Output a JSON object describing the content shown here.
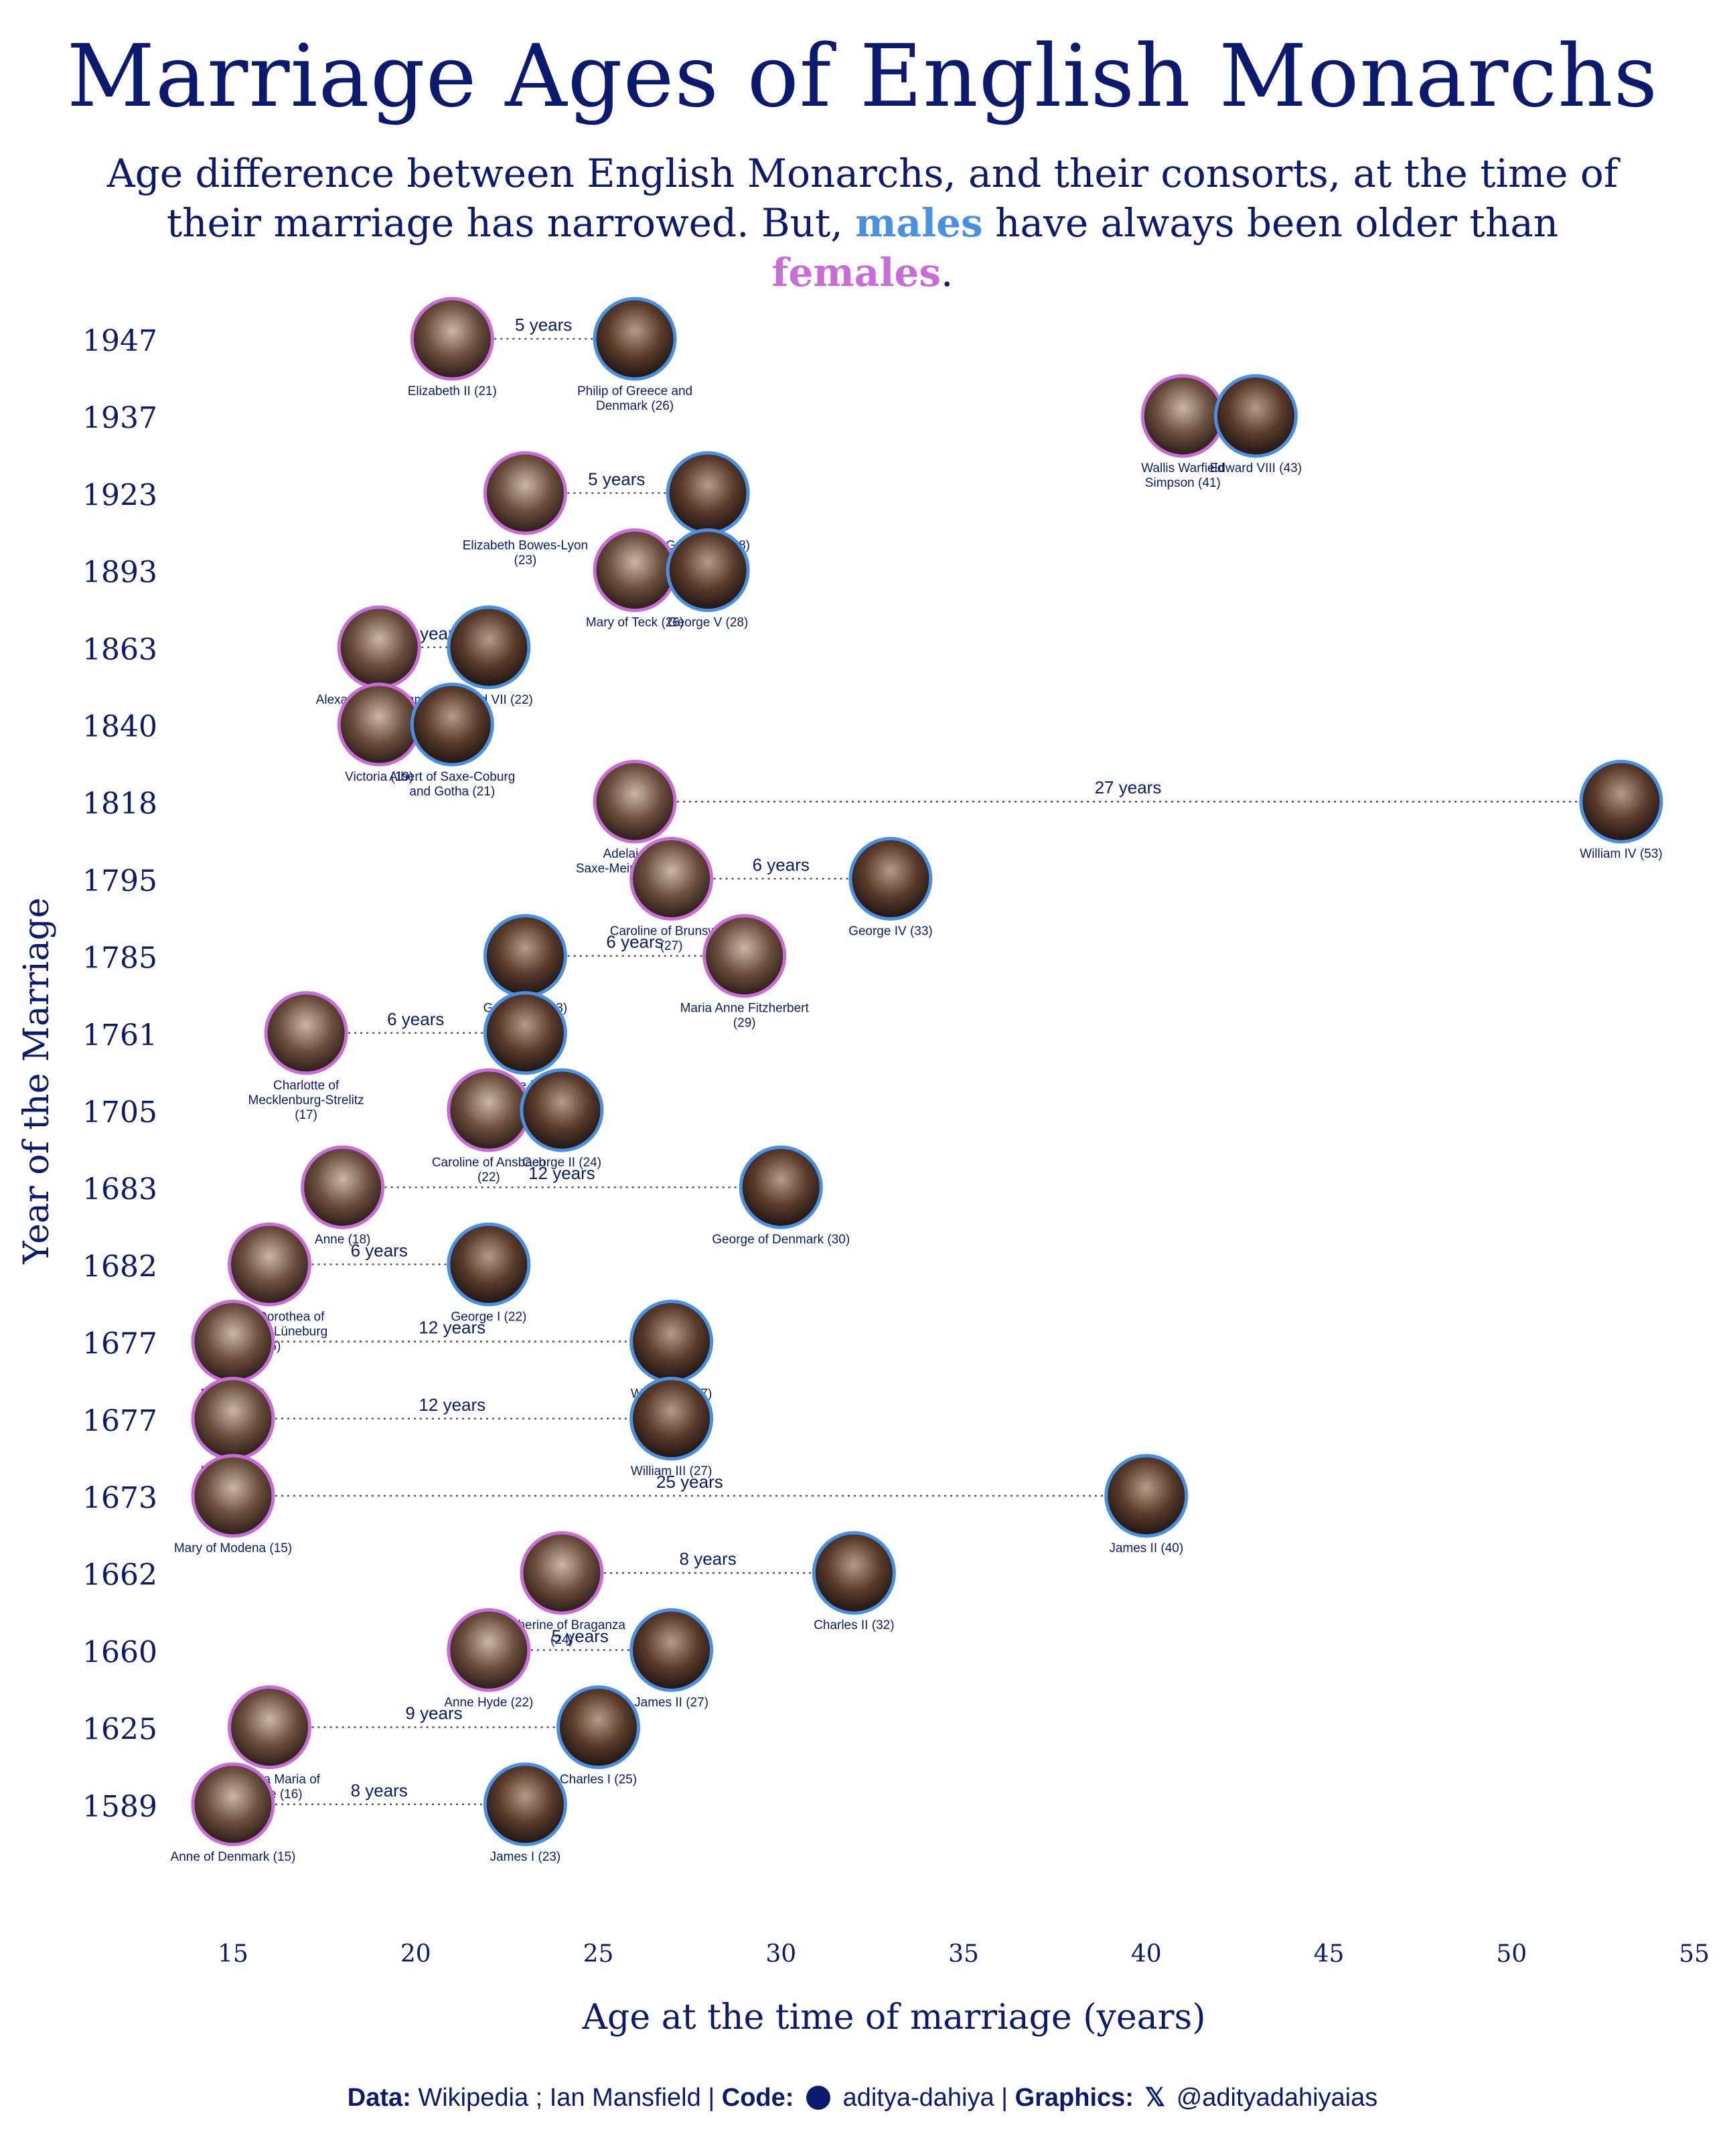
{
  "title": "Marriage Ages of English Monarchs",
  "subtitle": {
    "part1": "Age difference between English Monarchs, and their consorts, at the time of their marriage has narrowed. But,",
    "males": "males",
    "part2": "have always been older than",
    "females": "females",
    "end": "."
  },
  "colors": {
    "male": "#4a90e2",
    "female": "#c86dd7",
    "text": "#0b1a6e"
  },
  "caption": {
    "data_label": "Data:",
    "data_value": "Wikipedia ; Ian Mansfield |",
    "code_label": "Code:",
    "code_value": "aditya-dahiya |",
    "graphics_label": "Graphics:",
    "graphics_value": "@adityadahiyaias",
    "code_icon": "github-icon",
    "graphics_icon": "x-icon"
  },
  "chart_data": {
    "type": "dumbbell",
    "xlabel": "Age at the time of marriage (years)",
    "ylabel": "Year of the Marriage",
    "xlim": [
      15,
      55
    ],
    "xticks": [
      15,
      20,
      25,
      30,
      35,
      40,
      45,
      50,
      55
    ],
    "grid": false,
    "rows": [
      {
        "year": "1947",
        "female": "Elizabeth II (21)",
        "female_age": 21,
        "male": "Philip of Greece and Denmark (26)",
        "male_age": 26,
        "diff": "5 years"
      },
      {
        "year": "1937",
        "female": "Wallis Warfield Simpson (41)",
        "female_age": 41,
        "male": "Edward VIII (43)",
        "male_age": 43,
        "diff": ""
      },
      {
        "year": "1923",
        "female": "Elizabeth Bowes-Lyon (23)",
        "female_age": 23,
        "male": "George VI (28)",
        "male_age": 28,
        "diff": "5 years"
      },
      {
        "year": "1893",
        "female": "Mary of Teck (26)",
        "female_age": 26,
        "male": "George V (28)",
        "male_age": 28,
        "diff": ""
      },
      {
        "year": "1863",
        "female": "Alexandra of Denmark (19)",
        "female_age": 19,
        "male": "Edward VII (22)",
        "male_age": 22,
        "diff": "3 years"
      },
      {
        "year": "1840",
        "female": "Victoria (19)",
        "female_age": 19,
        "male": "Albert of Saxe-Coburg and Gotha (21)",
        "male_age": 21,
        "diff": ""
      },
      {
        "year": "1818",
        "female": "Adelaide of Saxe-Meiningen (26)",
        "female_age": 26,
        "male": "William IV (53)",
        "male_age": 53,
        "diff": "27 years"
      },
      {
        "year": "1795",
        "female": "Caroline of Brunswick (27)",
        "female_age": 27,
        "male": "George IV (33)",
        "male_age": 33,
        "diff": "6 years"
      },
      {
        "year": "1785",
        "female": "Maria Anne Fitzherbert (29)",
        "female_age": 29,
        "male": "George IV (23)",
        "male_age": 23,
        "diff": "6 years"
      },
      {
        "year": "1761",
        "female": "Charlotte of Mecklenburg-Strelitz (17)",
        "female_age": 17,
        "male": "George III (23)",
        "male_age": 23,
        "diff": "6 years"
      },
      {
        "year": "1705",
        "female": "Caroline of Ansbach (22)",
        "female_age": 22,
        "male": "George II (24)",
        "male_age": 24,
        "diff": ""
      },
      {
        "year": "1683",
        "female": "Anne (18)",
        "female_age": 18,
        "male": "George of Denmark (30)",
        "male_age": 30,
        "diff": "12 years"
      },
      {
        "year": "1682",
        "female": "Sophia Dorothea of Brunswick-Lüneburg (16)",
        "female_age": 16,
        "male": "George I (22)",
        "male_age": 22,
        "diff": "6 years"
      },
      {
        "year": "1677",
        "female": "Mary II (15)",
        "female_age": 15,
        "male": "William III (27)",
        "male_age": 27,
        "diff": "12 years"
      },
      {
        "year": "1677",
        "female": "Mary II (15)",
        "female_age": 15,
        "male": "William III (27)",
        "male_age": 27,
        "diff": "12 years"
      },
      {
        "year": "1673",
        "female": "Mary of Modena (15)",
        "female_age": 15,
        "male": "James II (40)",
        "male_age": 40,
        "diff": "25 years"
      },
      {
        "year": "1662",
        "female": "Catherine of Braganza (24)",
        "female_age": 24,
        "male": "Charles II (32)",
        "male_age": 32,
        "diff": "8 years"
      },
      {
        "year": "1660",
        "female": "Anne Hyde (22)",
        "female_age": 22,
        "male": "James II (27)",
        "male_age": 27,
        "diff": "5 years"
      },
      {
        "year": "1625",
        "female": "Henrietta Maria of France (16)",
        "female_age": 16,
        "male": "Charles I (25)",
        "male_age": 25,
        "diff": "9 years"
      },
      {
        "year": "1589",
        "female": "Anne of Denmark (15)",
        "female_age": 15,
        "male": "James I (23)",
        "male_age": 23,
        "diff": "8 years"
      }
    ]
  }
}
